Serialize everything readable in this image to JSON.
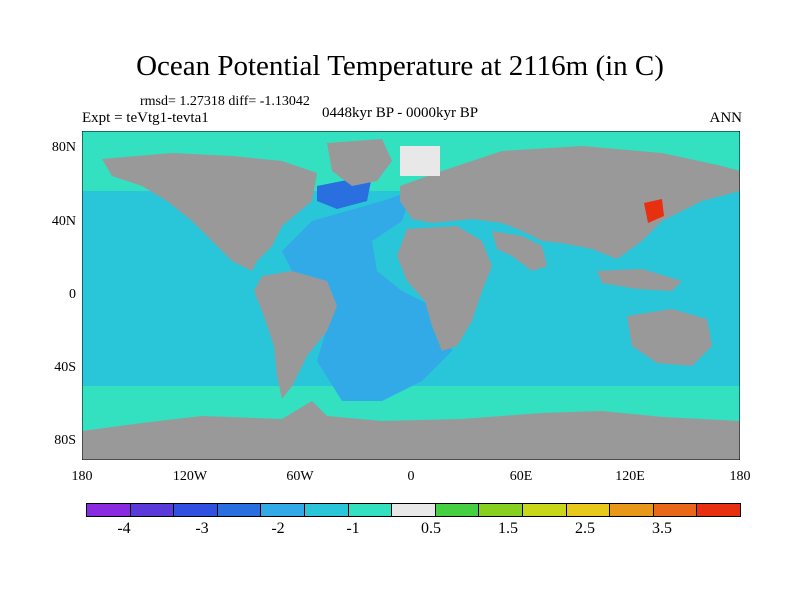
{
  "title": "Ocean Potential Temperature at 2116m (in C)",
  "stats": "rmsd= 1.27318 diff= -1.13042",
  "experiment": "Expt = teVtg1-tevta1",
  "period": "0448kyr BP - 0000kyr BP",
  "season": "ANN",
  "map": {
    "lat_ticks": [
      "80N",
      "40N",
      "0",
      "40S",
      "80S"
    ],
    "lon_ticks": [
      "180",
      "120W",
      "60W",
      "0",
      "60E",
      "120E",
      "180"
    ],
    "colors": {
      "land": "#999999",
      "ocean_high_lat": "#33e0c0",
      "ocean_mid": "#28c6d8",
      "atlantic": "#33aae8",
      "deep_anomaly": "#2a6fe0",
      "warm_anomaly": "#e83010"
    }
  },
  "colorbar": {
    "colors": [
      "#8a2be2",
      "#5a3ad8",
      "#3050e0",
      "#2a6fe0",
      "#33aae8",
      "#28c6d8",
      "#33e0c0",
      "#e8e8e8",
      "#44d040",
      "#88d020",
      "#c8d818",
      "#e8c818",
      "#e89818",
      "#e86818",
      "#e83010"
    ],
    "labels": [
      "-4",
      "-3",
      "-2",
      "-1",
      "0.5",
      "1.5",
      "2.5",
      "3.5"
    ]
  }
}
